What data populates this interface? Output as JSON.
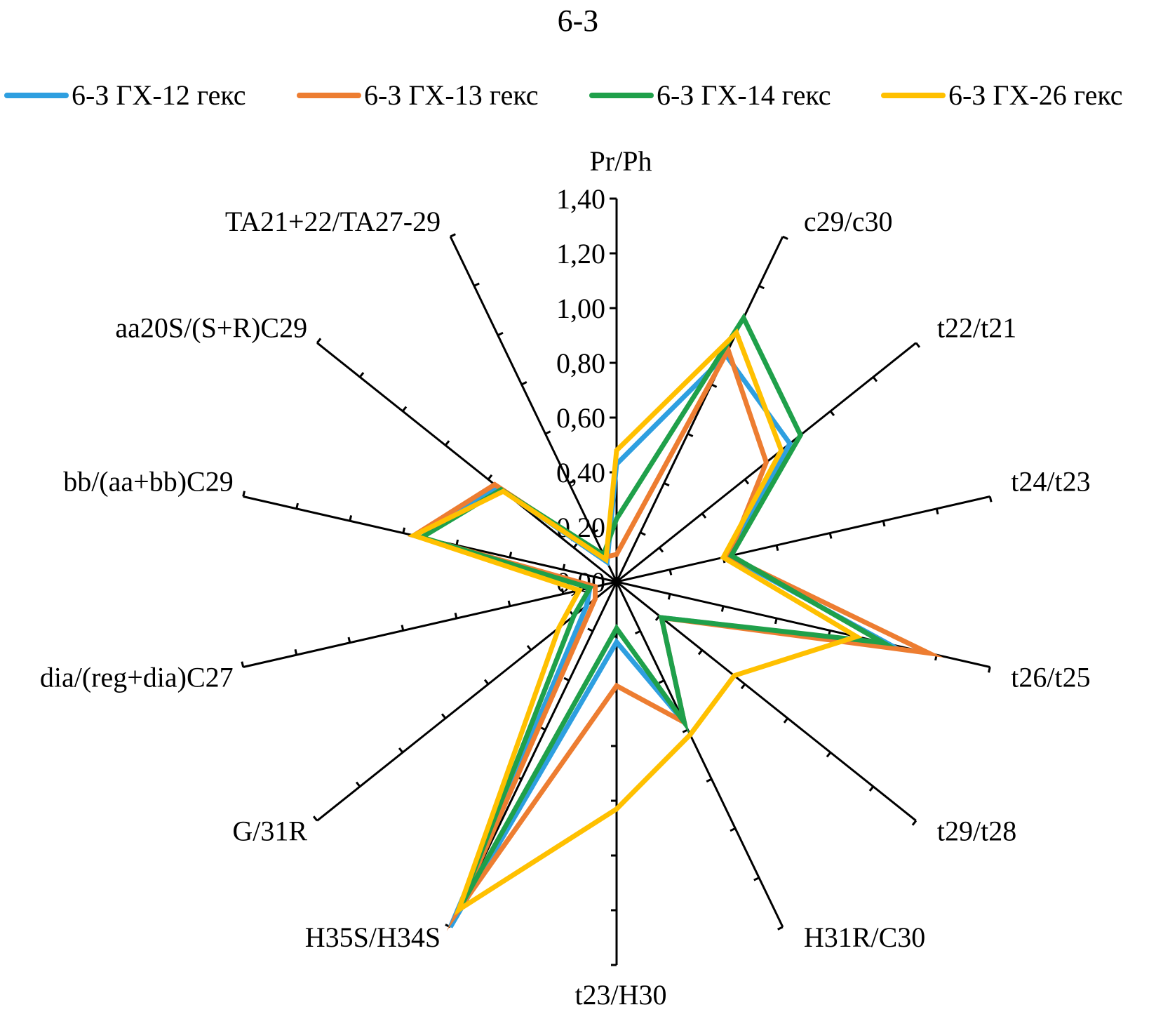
{
  "chart_data": {
    "type": "radar",
    "title": "6-З",
    "scale_label": "Pr/Ph",
    "axis_range": [
      0,
      1.4
    ],
    "ticks": [
      "0,00",
      "0,20",
      "0,40",
      "0,60",
      "0,80",
      "1,00",
      "1,20",
      "1,40"
    ],
    "tick_values": [
      0,
      0.2,
      0.4,
      0.6,
      0.8,
      1.0,
      1.2,
      1.4
    ],
    "legend_position": "top",
    "categories": [
      "Pr/Ph",
      "c29/c30",
      "t22/t21",
      "t24/t23",
      "t26/t25",
      "t29/t28",
      "H31R/C30",
      "t23/H30",
      "H35S/H34S",
      "G/31R",
      "dia/(reg+dia)C27",
      "bb/(aa+bb)C29",
      "aa20S/(S+R)C29",
      "TA21+22/TA27-29"
    ],
    "series": [
      {
        "name": "6-З ГХ-12 гекс",
        "color": "#2E9FE0",
        "values": [
          0.43,
          0.92,
          0.81,
          0.42,
          1.02,
          0.21,
          0.57,
          0.22,
          1.4,
          0.14,
          0.1,
          0.76,
          0.55,
          0.08
        ]
      },
      {
        "name": "6-З ГХ-13 гекс",
        "color": "#ED7D31",
        "values": [
          0.1,
          0.94,
          0.7,
          0.42,
          1.17,
          0.21,
          0.57,
          0.38,
          1.33,
          0.1,
          0.08,
          0.76,
          0.57,
          0.1
        ]
      },
      {
        "name": "6-З ГХ-14 гекс",
        "color": "#1FA04A",
        "values": [
          0.23,
          1.07,
          0.86,
          0.43,
          1.0,
          0.21,
          0.57,
          0.17,
          1.33,
          0.2,
          0.1,
          0.73,
          0.54,
          0.11
        ]
      },
      {
        "name": "6-З ГХ-26 гекс",
        "color": "#FFC000",
        "values": [
          0.48,
          1.01,
          0.77,
          0.4,
          0.9,
          0.55,
          0.62,
          0.83,
          1.33,
          0.27,
          0.14,
          0.76,
          0.53,
          0.09
        ]
      }
    ]
  }
}
